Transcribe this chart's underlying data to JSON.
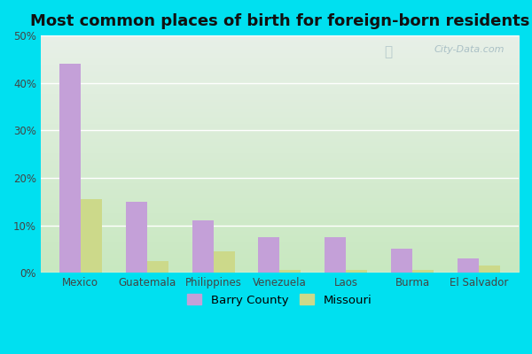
{
  "title": "Most common places of birth for foreign-born residents",
  "categories": [
    "Mexico",
    "Guatemala",
    "Philippines",
    "Venezuela",
    "Laos",
    "Burma",
    "El Salvador"
  ],
  "barry_county": [
    44,
    15,
    11,
    7.5,
    7.5,
    5,
    3
  ],
  "missouri": [
    15.5,
    2.5,
    4.5,
    0.5,
    0.5,
    0.5,
    1.5
  ],
  "barry_color": "#c4a0d8",
  "missouri_color": "#ccd98a",
  "background_outer": "#00e0f0",
  "ylim": [
    0,
    50
  ],
  "yticks": [
    0,
    10,
    20,
    30,
    40,
    50
  ],
  "title_fontsize": 13,
  "legend_labels": [
    "Barry County",
    "Missouri"
  ],
  "watermark": "City-Data.com",
  "bar_width": 0.32,
  "grad_top": "#e8f0e8",
  "grad_bottom": "#c8e8c0"
}
